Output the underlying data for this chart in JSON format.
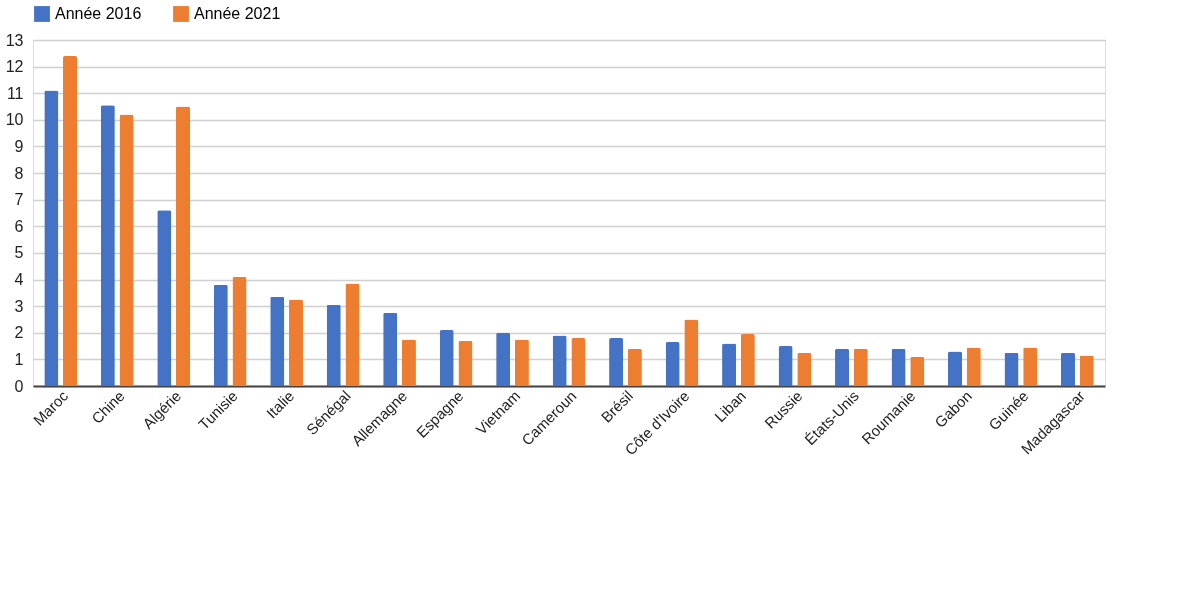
{
  "chart_data": {
    "type": "bar",
    "categories": [
      "Maroc",
      "Chine",
      "Algérie",
      "Tunisie",
      "Italie",
      "Sénégal",
      "Allemagne",
      "Espagne",
      "Vietnam",
      "Cameroun",
      "Brésil",
      "Côte d'Ivoire",
      "Liban",
      "Russie",
      "États-Unis",
      "Roumanie",
      "Gabon",
      "Guinée",
      "Madagascar"
    ],
    "series": [
      {
        "name": "Année 2016",
        "color": "#4472c4",
        "values": [
          11.1,
          10.55,
          6.6,
          3.8,
          3.35,
          3.05,
          2.75,
          2.1,
          2.0,
          1.9,
          1.8,
          1.65,
          1.6,
          1.5,
          1.4,
          1.4,
          1.3,
          1.25,
          1.25
        ]
      },
      {
        "name": "Année 2021",
        "color": "#ed7d31",
        "values": [
          12.4,
          10.2,
          10.5,
          4.1,
          3.25,
          3.85,
          1.75,
          1.7,
          1.75,
          1.8,
          1.4,
          2.5,
          1.95,
          1.25,
          1.4,
          1.1,
          1.45,
          1.45,
          1.15
        ]
      }
    ],
    "ylim": [
      0,
      13
    ],
    "yticks": [
      0,
      1,
      2,
      3,
      4,
      5,
      6,
      7,
      8,
      9,
      10,
      11,
      12,
      13
    ],
    "grid": "y",
    "legend": "top"
  }
}
